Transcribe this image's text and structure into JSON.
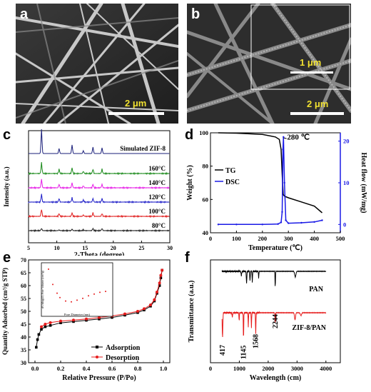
{
  "panels": {
    "a": {
      "letter": "a",
      "scale_bar": "2 μm"
    },
    "b": {
      "letter": "b",
      "scale_bar_inset": "1 μm",
      "scale_bar": "2 μm"
    },
    "c": {
      "letter": "c"
    },
    "d": {
      "letter": "d"
    },
    "e": {
      "letter": "e"
    },
    "f": {
      "letter": "f"
    }
  },
  "chart_data": [
    {
      "panel": "c",
      "type": "line",
      "xlabel": "2-Theta (degree)",
      "ylabel": "Intensity (a.u.)",
      "xlim": [
        5,
        30
      ],
      "xticks": [
        5,
        10,
        15,
        20,
        25,
        30
      ],
      "peaks": [
        7.3,
        10.4,
        12.7,
        14.7,
        16.4,
        18.0
      ],
      "series": [
        {
          "name": "Simulated ZIF-8",
          "color": "#1a1f7a",
          "peak_heights": [
            34,
            7,
            12,
            4,
            9,
            8
          ]
        },
        {
          "name": "160°C",
          "color": "#1b8a1b",
          "peak_heights": [
            15,
            6,
            8,
            3,
            6,
            6
          ]
        },
        {
          "name": "140°C",
          "color": "#e61ee6",
          "peak_heights": [
            12,
            5,
            7,
            3,
            5,
            5
          ]
        },
        {
          "name": "120°C",
          "color": "#1f1fc8",
          "peak_heights": [
            11,
            5,
            6,
            3,
            5,
            5
          ]
        },
        {
          "name": "100°C",
          "color": "#e01c1c",
          "peak_heights": [
            10,
            4,
            5,
            2,
            5,
            4
          ]
        },
        {
          "name": "80°C",
          "color": "#1a1a1a",
          "peak_heights": [
            3,
            1,
            2,
            1,
            3,
            3
          ]
        }
      ]
    },
    {
      "panel": "d",
      "type": "line",
      "xlabel": "Temperature (℃)",
      "ylabel": "Weight (%)",
      "y2label": "Heat flow (mW/mg)",
      "xlim": [
        0,
        500
      ],
      "ylim": [
        40,
        100
      ],
      "y2lim": [
        -2,
        22
      ],
      "xticks": [
        0,
        100,
        200,
        300,
        400,
        500
      ],
      "yticks": [
        40,
        60,
        80,
        100
      ],
      "y2ticks": [
        0,
        10,
        20
      ],
      "annotation": "280 ℃",
      "series": [
        {
          "name": "TG",
          "color": "#000000",
          "x": [
            30,
            100,
            200,
            250,
            265,
            272,
            276,
            280,
            285,
            300,
            350,
            400,
            430
          ],
          "y": [
            100,
            99.8,
            99,
            97.5,
            96,
            90,
            75,
            63,
            62,
            61,
            58.5,
            56,
            52
          ]
        },
        {
          "name": "DSC",
          "color": "#1a1ae6",
          "x": [
            30,
            100,
            200,
            260,
            272,
            276,
            279,
            281,
            285,
            290,
            300,
            350,
            400,
            430
          ],
          "y": [
            0,
            0,
            0,
            0.1,
            0.5,
            3,
            18,
            21,
            10,
            1,
            0.3,
            0.4,
            0.6,
            1
          ]
        }
      ]
    },
    {
      "panel": "e",
      "type": "line",
      "xlabel": "Relative Pressure (P/Po)",
      "ylabel": "Quantity Adsorbed (cm³/g STP)",
      "xlim": [
        -0.05,
        1.05
      ],
      "ylim": [
        30,
        70
      ],
      "xticks": [
        0.0,
        0.2,
        0.4,
        0.6,
        0.8,
        1.0
      ],
      "yticks": [
        30,
        35,
        40,
        45,
        50,
        55,
        60,
        65,
        70
      ],
      "series": [
        {
          "name": "Adsorption",
          "color": "#000000",
          "x": [
            0.01,
            0.02,
            0.03,
            0.05,
            0.08,
            0.12,
            0.2,
            0.3,
            0.4,
            0.5,
            0.6,
            0.7,
            0.8,
            0.85,
            0.9,
            0.93,
            0.95,
            0.97,
            0.98,
            0.99
          ],
          "y": [
            36,
            39,
            41,
            43,
            44,
            44.5,
            45.5,
            46,
            46.5,
            47,
            47.6,
            48.5,
            49.5,
            50.5,
            52,
            54,
            57,
            60,
            63,
            66
          ]
        },
        {
          "name": "Desorption",
          "color": "#e61c1c",
          "x": [
            0.99,
            0.98,
            0.97,
            0.95,
            0.93,
            0.9,
            0.85,
            0.8,
            0.7,
            0.6,
            0.5,
            0.4,
            0.3,
            0.2,
            0.12,
            0.08,
            0.05
          ],
          "y": [
            66,
            64,
            61,
            57.5,
            54.5,
            52.5,
            51,
            50,
            49,
            48.2,
            47.6,
            47,
            46.6,
            46.2,
            45.6,
            45,
            44
          ]
        }
      ],
      "inset": {
        "xlabel": "Pore Diameter (nm)",
        "ylabel": "dV/dlog(D) Pore Volume (cm³/g)",
        "x": [
          2,
          5,
          8,
          10,
          14,
          18,
          22,
          26,
          30,
          34,
          38,
          42
        ],
        "y": [
          0.95,
          0.6,
          0.4,
          0.3,
          0.22,
          0.2,
          0.24,
          0.28,
          0.34,
          0.38,
          0.42,
          0.44
        ]
      }
    },
    {
      "panel": "f",
      "type": "line",
      "xlabel": "Wavelength (cm)",
      "ylabel": "Transmittance (a.u.)",
      "xlim": [
        0,
        4500
      ],
      "xticks": [
        0,
        1000,
        2000,
        3000,
        4000
      ],
      "peak_labels": [
        "417",
        "1145",
        "1568",
        "2244"
      ],
      "series": [
        {
          "name": "PAN",
          "color": "#000000"
        },
        {
          "name": "ZIF-8/PAN",
          "color": "#e61c1c"
        }
      ]
    }
  ]
}
